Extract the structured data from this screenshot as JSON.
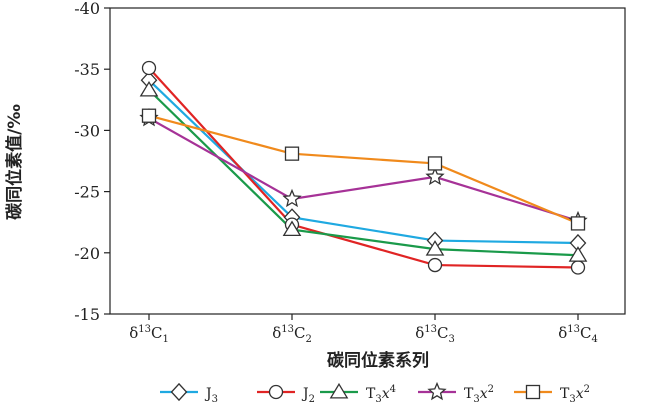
{
  "chart_data": {
    "type": "line",
    "ylabel": "碳同位素值/‰",
    "xlabel": "碳同位素系列",
    "ylim": [
      -40,
      -15
    ],
    "yticks": [
      -40,
      -35,
      -30,
      -25,
      -20,
      -15
    ],
    "ytick_labels": [
      "-40",
      "-35",
      "-30",
      "-25",
      "-20",
      "-15"
    ],
    "y_inverted": true,
    "categories": [
      {
        "base": "δ",
        "sup": "13",
        "main": "C",
        "sub": "1"
      },
      {
        "base": "δ",
        "sup": "13",
        "main": "C",
        "sub": "2"
      },
      {
        "base": "δ",
        "sup": "13",
        "main": "C",
        "sub": "3"
      },
      {
        "base": "δ",
        "sup": "13",
        "main": "C",
        "sub": "4"
      }
    ],
    "grid": false,
    "legend_position": "bottom",
    "series": [
      {
        "legend": {
          "main": "J",
          "sub": "3",
          "rest": "",
          "sup": ""
        },
        "marker": "diamond",
        "color": "#1fa9e1",
        "values": [
          -34.1,
          -22.9,
          -21.0,
          -20.8
        ]
      },
      {
        "legend": {
          "main": "J",
          "sub": "2",
          "rest": "",
          "sup": ""
        },
        "marker": "circle",
        "color": "#e02424",
        "values": [
          -35.1,
          -22.3,
          -19.0,
          -18.8
        ]
      },
      {
        "legend": {
          "main": "T",
          "sub": "3",
          "rest": "x",
          "sup": "4"
        },
        "marker": "triangle",
        "color": "#1a9a4a",
        "values": [
          -33.3,
          -21.9,
          -20.3,
          -19.8
        ]
      },
      {
        "legend": {
          "main": "T",
          "sub": "3",
          "rest": "x",
          "sup": "2"
        },
        "marker": "star",
        "color": "#a63297",
        "values": [
          -31.0,
          -24.4,
          -26.2,
          -22.6
        ]
      },
      {
        "legend": {
          "main": "T",
          "sub": "3",
          "rest": "x",
          "sup": "2"
        },
        "marker": "square",
        "color": "#f08a1c",
        "values": [
          -31.2,
          -28.1,
          -27.3,
          -22.4
        ]
      }
    ]
  }
}
